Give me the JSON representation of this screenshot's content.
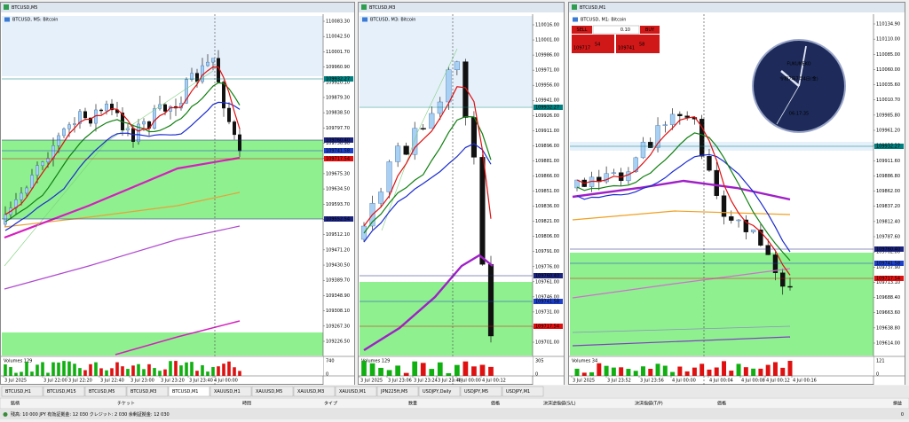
{
  "windows": [
    {
      "title": "BTCUSD,M5",
      "label": "BTCUSD, M5: Bitcoin",
      "price_labels": [
        "110083.30",
        "110042.50",
        "110001.70",
        "109960.90",
        "109920.10",
        "109879.30",
        "109838.50",
        "109797.70",
        "109756.90",
        "109716.10",
        "109675.30",
        "109634.50",
        "109593.70",
        "109552.90",
        "109512.10",
        "109471.20",
        "109430.50",
        "109389.70",
        "109348.90",
        "109308.10",
        "109267.30",
        "109226.50"
      ],
      "markers": [
        {
          "label": "109932.27",
          "color": "#008080"
        },
        {
          "label": "109760.40",
          "color": "#1a237e"
        },
        {
          "label": "109741.58",
          "color": "#1e40c8"
        },
        {
          "label": "109717.54",
          "color": "#e01010"
        },
        {
          "label": "109552.54",
          "color": "#1a237e"
        }
      ],
      "volume_label": "Volumes 129",
      "volume_ticks": [
        "740",
        "0"
      ],
      "time_labels": [
        "3 Jul 2025",
        "3 Jul 22:00",
        "3 Jul 22:20",
        "3 Jul 22:40",
        "3 Jul 23:00",
        "3 Jul 23:20",
        "3 Jul 23:40",
        "4 Jul 00:00"
      ]
    },
    {
      "title": "BTCUSD,M3",
      "label": "BTCUSD, M3: Bitcoin",
      "price_labels": [
        "110016.00",
        "110001.00",
        "109986.00",
        "109971.00",
        "109956.00",
        "109941.00",
        "109926.00",
        "109911.00",
        "109896.00",
        "109881.00",
        "109866.00",
        "109851.00",
        "109836.00",
        "109821.00",
        "109806.00",
        "109791.00",
        "109776.00",
        "109761.00",
        "109746.00",
        "109731.00",
        "109716.00",
        "109701.00"
      ],
      "markers": [
        {
          "label": "109932.27",
          "color": "#008080"
        },
        {
          "label": "109760.40",
          "color": "#1a237e"
        },
        {
          "label": "109741.58",
          "color": "#1e40c8"
        },
        {
          "label": "109717.54",
          "color": "#e01010"
        }
      ],
      "volume_label": "Volumes 129",
      "volume_ticks": [
        "305",
        "0"
      ],
      "time_labels": [
        "3 Jul 2025",
        "3 Jul 23:06",
        "3 Jul 23:24",
        "3 Jul 23:48",
        "4 Jul 00:00",
        "4 Jul 00:12"
      ]
    },
    {
      "title": "BTCUSD,M1",
      "label": "BTCUSD, M1: Bitcoin",
      "price_labels": [
        "110134.90",
        "110110.00",
        "110085.00",
        "110060.00",
        "110035.60",
        "110010.70",
        "109985.80",
        "109961.20",
        "109936.20",
        "109911.60",
        "109886.80",
        "109862.00",
        "109837.20",
        "109812.40",
        "109787.60",
        "109762.80",
        "109737.90",
        "109713.10",
        "109688.40",
        "109663.60",
        "109638.80",
        "109614.00"
      ],
      "markers": [
        {
          "label": "109932.27",
          "color": "#008080"
        },
        {
          "label": "109760.40",
          "color": "#1a237e"
        },
        {
          "label": "109741.58",
          "color": "#1e40c8"
        },
        {
          "label": "109717.54",
          "color": "#e01010"
        }
      ],
      "volume_label": "Volumes 34",
      "volume_ticks": [
        "121",
        "0"
      ],
      "time_labels": [
        "3 Jul 2025",
        "3 Jul 23:52",
        "3 Jul 23:56",
        "4 Jul 00:00",
        "4 Jul 00:04",
        "4 Jul 00:08",
        "4 Jul 00:12",
        "4 Jul 00:16"
      ]
    }
  ],
  "trade_panel": {
    "sell": "SELL",
    "buy": "BUY",
    "lot": "0.10",
    "bid_small": "109717",
    "bid_big": "54",
    "ask_small": "109741",
    "ask_big": "58"
  },
  "clock": {
    "brand": "FUKUNEKO",
    "date": "令和7年7月4日(金)",
    "time": "06:17:35"
  },
  "tabs": [
    "BTCUSD,H1",
    "BTCUSD,M15",
    "BTCUSD,M5",
    "BTCUSD,M3",
    "BTCUSD,M1",
    "XAUUSD,H1",
    "XAUUSD,M5",
    "XAUUSD,M3",
    "XAUUSD,M1",
    "JPN225ft,M5",
    "USDJPY,Daily",
    "USDJPY,M5",
    "USDJPY,M1"
  ],
  "active_tab": 4,
  "terminal": {
    "columns": [
      "銘柄",
      "チケット",
      "時間",
      "タイプ",
      "数量",
      "価格",
      "決済逆指値(S/L)",
      "決済指値(T/P)",
      "価格",
      "損益"
    ],
    "balance": "残高: 10 000 JPY  有効証拠金: 12 030  クレジット: 2 030  余剰証拠金: 12 030",
    "profit": "0"
  }
}
